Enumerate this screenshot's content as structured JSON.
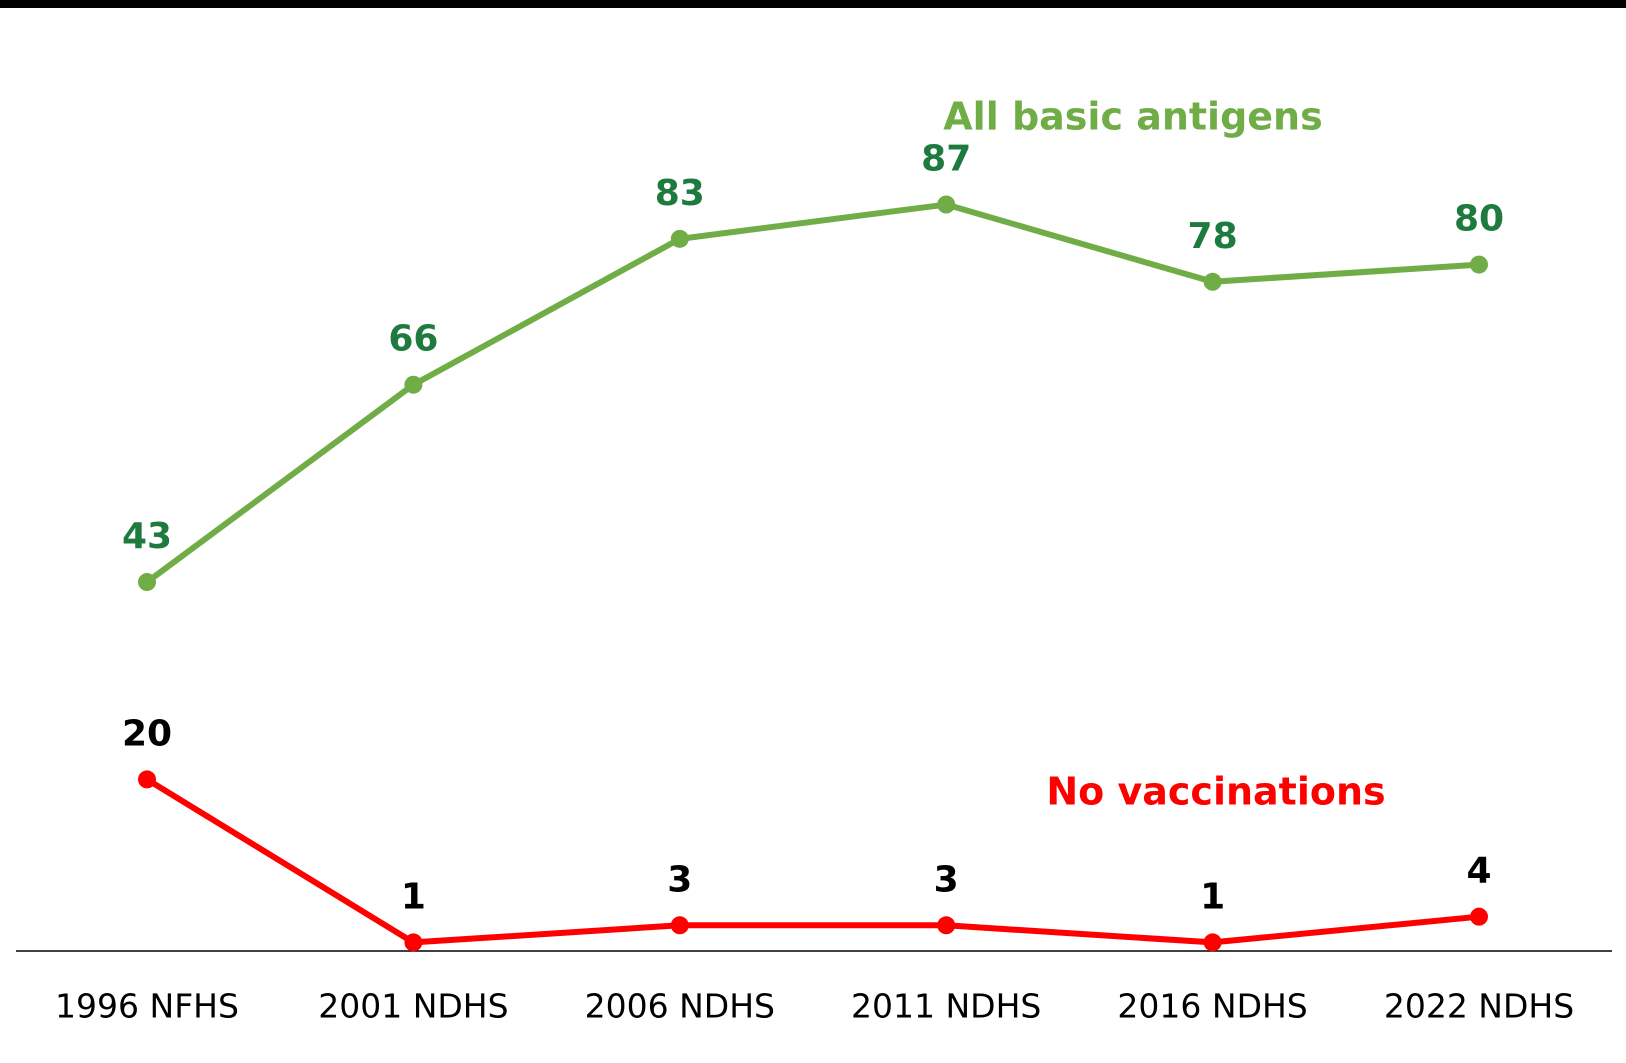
{
  "chart_data": {
    "type": "line",
    "categories": [
      "1996 NFHS",
      "2001 NDHS",
      "2006 NDHS",
      "2011 NDHS",
      "2016 NDHS",
      "2022 NDHS"
    ],
    "series": [
      {
        "name": "All basic antigens",
        "color": "#70ad47",
        "label_color": "#1e7a3e",
        "values": [
          43,
          66,
          83,
          87,
          78,
          80
        ]
      },
      {
        "name": "No vaccinations",
        "color": "#ff0000",
        "label_color": "#000000",
        "values": [
          20,
          1,
          3,
          3,
          1,
          4
        ]
      }
    ],
    "ylim": [
      0,
      100
    ],
    "grid": false
  }
}
